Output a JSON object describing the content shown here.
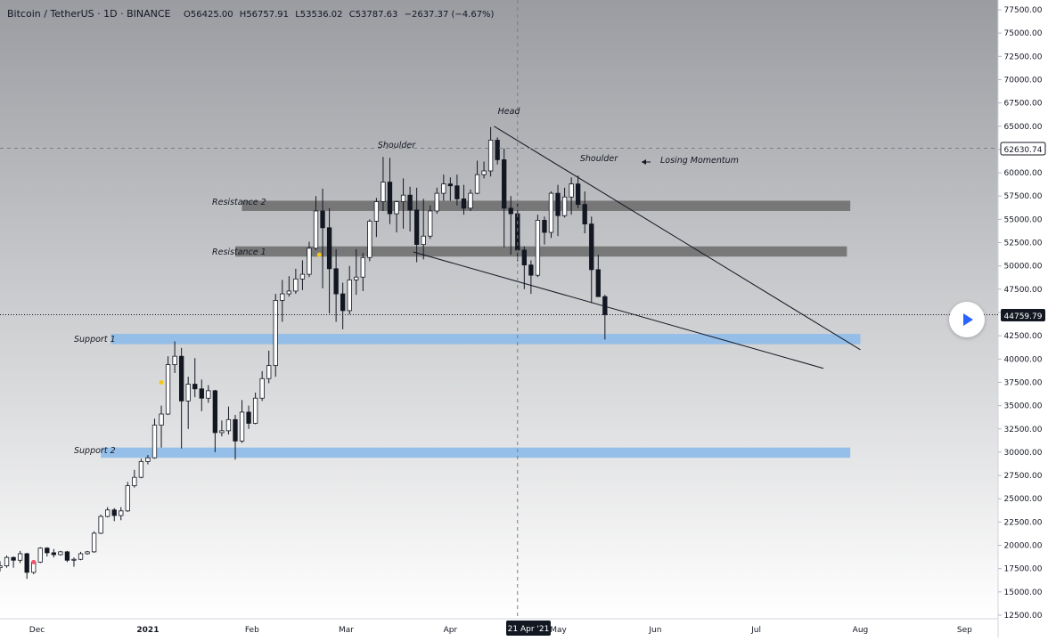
{
  "header": {
    "symbol": "Bitcoin / TetherUS · 1D · BINANCE",
    "o_label": "O",
    "o_value": "56425.00",
    "h_label": "H",
    "h_value": "56757.91",
    "l_label": "L",
    "l_value": "53536.02",
    "c_label": "C",
    "c_value": "53787.63",
    "change": "−2637.37 (−4.67%)"
  },
  "price_axis": {
    "ticks": [
      "77500.00",
      "75000.00",
      "72500.00",
      "70000.00",
      "67500.00",
      "65000.00",
      "62500.00",
      "60000.00",
      "57500.00",
      "55000.00",
      "52500.00",
      "50000.00",
      "47500.00",
      "45000.00",
      "42500.00",
      "40000.00",
      "37500.00",
      "35000.00",
      "32500.00",
      "30000.00",
      "27500.00",
      "25000.00",
      "22500.00",
      "20000.00",
      "17500.00",
      "15000.00",
      "12500.00"
    ],
    "marker_high": "62630.74",
    "marker_current": "44759.79"
  },
  "time_axis": {
    "ticks": [
      "Dec",
      "2021",
      "Feb",
      "Mar",
      "Apr",
      "May",
      "Jun",
      "Jul",
      "Aug",
      "Sep"
    ],
    "crosshair_label": "21 Apr '21"
  },
  "annotations": {
    "head": "Head",
    "shoulder_left": "Shoulder",
    "shoulder_right": "Shoulder",
    "losing_momentum": "Losing Momentum",
    "resistance_1": "Resistance 1",
    "resistance_2": "Resistance 2",
    "support_1": "Support 1",
    "support_2": "Support 2"
  },
  "colors": {
    "up": "#ffffff",
    "down": "#131722",
    "resistance_zone": "#6b6b6b",
    "support_zone": "#90bde8",
    "background_top": "#9a9ca1",
    "background_bottom": "#ffffff"
  },
  "chart_data": {
    "type": "candlestick",
    "title": "Bitcoin / TetherUS · 1D · BINANCE",
    "ylim": [
      12500,
      77500
    ],
    "x_range": [
      "2020-11-18",
      "2021-09-07"
    ],
    "ohlc_last": {
      "open": 56425.0,
      "high": 56757.91,
      "low": 53536.02,
      "close": 53787.63
    },
    "current_price": 44759.79,
    "high_marker": 62630.74,
    "crosshair_date": "2021-04-21",
    "zones": [
      {
        "name": "Resistance 2",
        "low": 55900,
        "high": 57000,
        "start": "2021-01-29",
        "end": "2021-07-29"
      },
      {
        "name": "Resistance 1",
        "low": 51000,
        "high": 52100,
        "start": "2021-01-27",
        "end": "2021-07-28"
      },
      {
        "name": "Support 1",
        "low": 41600,
        "high": 42700,
        "start": "2020-12-21",
        "end": "2021-08-01"
      },
      {
        "name": "Support 2",
        "low": 29400,
        "high": 30500,
        "start": "2020-12-18",
        "end": "2021-07-29"
      }
    ],
    "trendlines": [
      {
        "from": {
          "date": "2021-04-14",
          "price": 65000
        },
        "to": {
          "date": "2021-08-01",
          "price": 41000
        }
      },
      {
        "from": {
          "date": "2021-03-21",
          "price": 51500
        },
        "to": {
          "date": "2021-07-21",
          "price": 39000
        }
      }
    ],
    "markers": [
      {
        "date": "2020-11-28",
        "price": 18200,
        "color": "#f0556b"
      },
      {
        "date": "2021-01-05",
        "price": 37500,
        "color": "#f5c518"
      },
      {
        "date": "2021-02-21",
        "price": 51200,
        "color": "#f5c518"
      }
    ],
    "candles": [
      {
        "date": "2020-11-18",
        "o": 17600,
        "h": 18300,
        "l": 17200,
        "c": 17800
      },
      {
        "date": "2020-11-20",
        "o": 17800,
        "h": 18900,
        "l": 17600,
        "c": 18700
      },
      {
        "date": "2020-11-22",
        "o": 18700,
        "h": 18800,
        "l": 17600,
        "c": 18400
      },
      {
        "date": "2020-11-24",
        "o": 18400,
        "h": 19400,
        "l": 18100,
        "c": 19100
      },
      {
        "date": "2020-11-26",
        "o": 19100,
        "h": 19200,
        "l": 16400,
        "c": 17100
      },
      {
        "date": "2020-11-28",
        "o": 17100,
        "h": 18400,
        "l": 16900,
        "c": 18200
      },
      {
        "date": "2020-11-30",
        "o": 18200,
        "h": 19800,
        "l": 18100,
        "c": 19700
      },
      {
        "date": "2020-12-02",
        "o": 19700,
        "h": 19800,
        "l": 18800,
        "c": 19200
      },
      {
        "date": "2020-12-04",
        "o": 19200,
        "h": 19600,
        "l": 18700,
        "c": 19000
      },
      {
        "date": "2020-12-06",
        "o": 19000,
        "h": 19400,
        "l": 18900,
        "c": 19300
      },
      {
        "date": "2020-12-08",
        "o": 19300,
        "h": 19400,
        "l": 18200,
        "c": 18400
      },
      {
        "date": "2020-12-10",
        "o": 18400,
        "h": 18700,
        "l": 17700,
        "c": 18500
      },
      {
        "date": "2020-12-12",
        "o": 18500,
        "h": 19300,
        "l": 18400,
        "c": 19100
      },
      {
        "date": "2020-12-14",
        "o": 19100,
        "h": 19400,
        "l": 19000,
        "c": 19300
      },
      {
        "date": "2020-12-16",
        "o": 19300,
        "h": 21500,
        "l": 19200,
        "c": 21300
      },
      {
        "date": "2020-12-18",
        "o": 21300,
        "h": 23300,
        "l": 21200,
        "c": 23100
      },
      {
        "date": "2020-12-20",
        "o": 23100,
        "h": 24100,
        "l": 23000,
        "c": 23800
      },
      {
        "date": "2020-12-22",
        "o": 23800,
        "h": 24000,
        "l": 22600,
        "c": 23200
      },
      {
        "date": "2020-12-24",
        "o": 23200,
        "h": 24100,
        "l": 22700,
        "c": 23700
      },
      {
        "date": "2020-12-26",
        "o": 23700,
        "h": 26800,
        "l": 23600,
        "c": 26400
      },
      {
        "date": "2020-12-28",
        "o": 26400,
        "h": 28100,
        "l": 26200,
        "c": 27300
      },
      {
        "date": "2020-12-30",
        "o": 27300,
        "h": 29300,
        "l": 27200,
        "c": 29000
      },
      {
        "date": "2021-01-01",
        "o": 29000,
        "h": 29700,
        "l": 28700,
        "c": 29400
      },
      {
        "date": "2021-01-03",
        "o": 29400,
        "h": 33600,
        "l": 29300,
        "c": 32900
      },
      {
        "date": "2021-01-05",
        "o": 32900,
        "h": 35000,
        "l": 30500,
        "c": 34100
      },
      {
        "date": "2021-01-07",
        "o": 34100,
        "h": 40300,
        "l": 34000,
        "c": 39400
      },
      {
        "date": "2021-01-09",
        "o": 39400,
        "h": 41900,
        "l": 38500,
        "c": 40300
      },
      {
        "date": "2021-01-11",
        "o": 40300,
        "h": 41200,
        "l": 30400,
        "c": 35500
      },
      {
        "date": "2021-01-13",
        "o": 35500,
        "h": 38100,
        "l": 32500,
        "c": 37300
      },
      {
        "date": "2021-01-15",
        "o": 37300,
        "h": 40100,
        "l": 35900,
        "c": 36800
      },
      {
        "date": "2021-01-17",
        "o": 36800,
        "h": 37800,
        "l": 34400,
        "c": 35800
      },
      {
        "date": "2021-01-19",
        "o": 35800,
        "h": 37200,
        "l": 35300,
        "c": 36600
      },
      {
        "date": "2021-01-21",
        "o": 36600,
        "h": 36700,
        "l": 30000,
        "c": 32100
      },
      {
        "date": "2021-01-23",
        "o": 32100,
        "h": 33400,
        "l": 31700,
        "c": 32300
      },
      {
        "date": "2021-01-25",
        "o": 32300,
        "h": 34900,
        "l": 31900,
        "c": 33500
      },
      {
        "date": "2021-01-27",
        "o": 33500,
        "h": 34000,
        "l": 29200,
        "c": 31200
      },
      {
        "date": "2021-01-29",
        "o": 31200,
        "h": 35600,
        "l": 31000,
        "c": 34300
      },
      {
        "date": "2021-01-31",
        "o": 34300,
        "h": 35000,
        "l": 32500,
        "c": 33100
      },
      {
        "date": "2021-02-02",
        "o": 33100,
        "h": 36400,
        "l": 33000,
        "c": 35800
      },
      {
        "date": "2021-02-04",
        "o": 35800,
        "h": 38700,
        "l": 35500,
        "c": 37900
      },
      {
        "date": "2021-02-06",
        "o": 37900,
        "h": 40900,
        "l": 37400,
        "c": 39300
      },
      {
        "date": "2021-02-08",
        "o": 39300,
        "h": 47000,
        "l": 38100,
        "c": 46300
      },
      {
        "date": "2021-02-10",
        "o": 46300,
        "h": 48500,
        "l": 44000,
        "c": 47000
      },
      {
        "date": "2021-02-12",
        "o": 47000,
        "h": 48900,
        "l": 46700,
        "c": 47300
      },
      {
        "date": "2021-02-14",
        "o": 47300,
        "h": 49700,
        "l": 47000,
        "c": 48600
      },
      {
        "date": "2021-02-16",
        "o": 48600,
        "h": 50600,
        "l": 47400,
        "c": 49100
      },
      {
        "date": "2021-02-18",
        "o": 49100,
        "h": 52600,
        "l": 48800,
        "c": 51900
      },
      {
        "date": "2021-02-20",
        "o": 51900,
        "h": 57500,
        "l": 51700,
        "c": 55900
      },
      {
        "date": "2021-02-22",
        "o": 55900,
        "h": 58300,
        "l": 47600,
        "c": 54100
      },
      {
        "date": "2021-02-24",
        "o": 54100,
        "h": 56200,
        "l": 44900,
        "c": 49700
      },
      {
        "date": "2021-02-26",
        "o": 49700,
        "h": 51800,
        "l": 44000,
        "c": 47000
      },
      {
        "date": "2021-02-28",
        "o": 47000,
        "h": 48200,
        "l": 43200,
        "c": 45200
      },
      {
        "date": "2021-03-02",
        "o": 45200,
        "h": 50000,
        "l": 44800,
        "c": 48500
      },
      {
        "date": "2021-03-04",
        "o": 48500,
        "h": 51800,
        "l": 46900,
        "c": 48800
      },
      {
        "date": "2021-03-06",
        "o": 48800,
        "h": 51400,
        "l": 47300,
        "c": 50900
      },
      {
        "date": "2021-03-08",
        "o": 50900,
        "h": 55000,
        "l": 50500,
        "c": 54800
      },
      {
        "date": "2021-03-10",
        "o": 54800,
        "h": 57300,
        "l": 53100,
        "c": 56900
      },
      {
        "date": "2021-03-12",
        "o": 56900,
        "h": 61700,
        "l": 55900,
        "c": 59000
      },
      {
        "date": "2021-03-14",
        "o": 59000,
        "h": 61600,
        "l": 54500,
        "c": 55600
      },
      {
        "date": "2021-03-16",
        "o": 55600,
        "h": 57000,
        "l": 53600,
        "c": 56900
      },
      {
        "date": "2021-03-18",
        "o": 56900,
        "h": 59400,
        "l": 54000,
        "c": 57600
      },
      {
        "date": "2021-03-20",
        "o": 57600,
        "h": 58500,
        "l": 53700,
        "c": 56000
      },
      {
        "date": "2021-03-22",
        "o": 56000,
        "h": 58400,
        "l": 50400,
        "c": 52300
      },
      {
        "date": "2021-03-24",
        "o": 52300,
        "h": 57200,
        "l": 50700,
        "c": 53200
      },
      {
        "date": "2021-03-26",
        "o": 53200,
        "h": 56500,
        "l": 52900,
        "c": 55900
      },
      {
        "date": "2021-03-28",
        "o": 55900,
        "h": 58400,
        "l": 55600,
        "c": 57800
      },
      {
        "date": "2021-03-30",
        "o": 57800,
        "h": 59800,
        "l": 57000,
        "c": 58800
      },
      {
        "date": "2021-04-01",
        "o": 58800,
        "h": 59500,
        "l": 57000,
        "c": 58600
      },
      {
        "date": "2021-04-03",
        "o": 58600,
        "h": 59800,
        "l": 56500,
        "c": 57200
      },
      {
        "date": "2021-04-05",
        "o": 57200,
        "h": 58700,
        "l": 55500,
        "c": 56200
      },
      {
        "date": "2021-04-07",
        "o": 56200,
        "h": 58200,
        "l": 55900,
        "c": 57800
      },
      {
        "date": "2021-04-09",
        "o": 57800,
        "h": 61300,
        "l": 57700,
        "c": 59800
      },
      {
        "date": "2021-04-11",
        "o": 59800,
        "h": 61200,
        "l": 59400,
        "c": 60200
      },
      {
        "date": "2021-04-13",
        "o": 60200,
        "h": 64900,
        "l": 59600,
        "c": 63500
      },
      {
        "date": "2021-04-15",
        "o": 63500,
        "h": 63800,
        "l": 60900,
        "c": 61400
      },
      {
        "date": "2021-04-17",
        "o": 61400,
        "h": 62600,
        "l": 52000,
        "c": 56200
      },
      {
        "date": "2021-04-19",
        "o": 56200,
        "h": 57500,
        "l": 51200,
        "c": 55600
      },
      {
        "date": "2021-04-21",
        "o": 55600,
        "h": 56700,
        "l": 50500,
        "c": 51700
      },
      {
        "date": "2021-04-23",
        "o": 51700,
        "h": 52100,
        "l": 47500,
        "c": 50100
      },
      {
        "date": "2021-04-25",
        "o": 50100,
        "h": 50600,
        "l": 47000,
        "c": 49000
      },
      {
        "date": "2021-04-27",
        "o": 49000,
        "h": 55500,
        "l": 48800,
        "c": 54900
      },
      {
        "date": "2021-04-29",
        "o": 54900,
        "h": 55300,
        "l": 52300,
        "c": 53600
      },
      {
        "date": "2021-05-01",
        "o": 53600,
        "h": 58000,
        "l": 53000,
        "c": 57800
      },
      {
        "date": "2021-05-03",
        "o": 57800,
        "h": 58700,
        "l": 53200,
        "c": 55400
      },
      {
        "date": "2021-05-05",
        "o": 55400,
        "h": 58400,
        "l": 55200,
        "c": 57400
      },
      {
        "date": "2021-05-07",
        "o": 57400,
        "h": 59500,
        "l": 55500,
        "c": 58800
      },
      {
        "date": "2021-05-09",
        "o": 58800,
        "h": 59700,
        "l": 56200,
        "c": 56600
      },
      {
        "date": "2021-05-11",
        "o": 56600,
        "h": 58000,
        "l": 53500,
        "c": 54500
      },
      {
        "date": "2021-05-13",
        "o": 54500,
        "h": 55300,
        "l": 46000,
        "c": 49600
      },
      {
        "date": "2021-05-15",
        "o": 49600,
        "h": 51200,
        "l": 46800,
        "c": 46700
      },
      {
        "date": "2021-05-17",
        "o": 46700,
        "h": 46900,
        "l": 42100,
        "c": 44759.79
      }
    ]
  }
}
